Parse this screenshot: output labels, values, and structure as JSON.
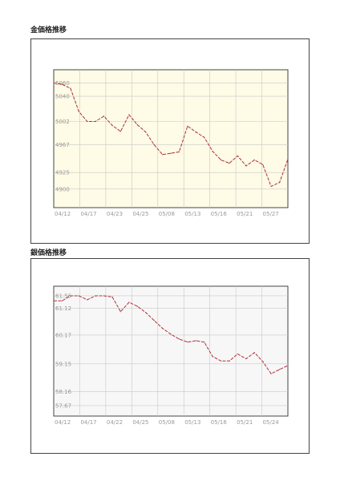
{
  "chart_data": [
    {
      "type": "line",
      "title": "金価格推移",
      "xlabel": "",
      "ylabel": "",
      "x_ticks": [
        "04/12",
        "04/17",
        "04/23",
        "04/25",
        "05/08",
        "05/13",
        "05/16",
        "05/21",
        "05/27"
      ],
      "y_ticks": [
        "5060",
        "5040",
        "5002",
        "4967",
        "4925",
        "4900"
      ],
      "y_tick_values": [
        5060,
        5040,
        5002,
        4967,
        4925,
        4900
      ],
      "ylim": [
        4872,
        5080
      ],
      "x_range": [
        0,
        28
      ],
      "grid": true,
      "background": "#fefbe6",
      "line_color": "#b0303a",
      "series": [
        {
          "x": [
            0,
            1,
            2,
            3,
            4,
            5,
            6,
            7,
            8,
            9,
            10,
            11,
            12,
            13,
            14,
            15,
            16,
            17,
            18,
            19,
            20,
            21,
            22,
            23,
            24,
            25,
            26,
            27,
            28
          ],
          "values": [
            5060,
            5058,
            5052,
            5017,
            5002,
            5002,
            5010,
            4996,
            4987,
            5012,
            4997,
            4986,
            4967,
            4952,
            4954,
            4956,
            4995,
            4986,
            4978,
            4957,
            4944,
            4939,
            4950,
            4935,
            4944,
            4937,
            4904,
            4910,
            4945
          ]
        }
      ]
    },
    {
      "type": "line",
      "title": "銀価格推移",
      "xlabel": "",
      "ylabel": "",
      "x_ticks": [
        "04/12",
        "04/17",
        "04/22",
        "04/25",
        "05/08",
        "05/13",
        "05/16",
        "05/21",
        "05/24"
      ],
      "y_ticks": [
        "61.56",
        "61.12",
        "60.17",
        "59.15",
        "58.16",
        "57.67"
      ],
      "y_tick_values": [
        61.56,
        61.12,
        60.17,
        59.15,
        58.16,
        57.67
      ],
      "ylim": [
        57.3,
        61.9
      ],
      "x_range": [
        0,
        28
      ],
      "grid": true,
      "background": "#f7f7f7",
      "line_color": "#b0303a",
      "series": [
        {
          "x": [
            0,
            1,
            2,
            3,
            4,
            5,
            6,
            7,
            8,
            9,
            10,
            11,
            12,
            13,
            14,
            15,
            16,
            17,
            18,
            19,
            20,
            21,
            22,
            23,
            24,
            25,
            26,
            27,
            28
          ],
          "values": [
            61.38,
            61.38,
            61.56,
            61.56,
            61.42,
            61.56,
            61.56,
            61.52,
            61.0,
            61.33,
            61.19,
            60.97,
            60.69,
            60.41,
            60.2,
            60.03,
            59.92,
            59.97,
            59.92,
            59.41,
            59.25,
            59.25,
            59.5,
            59.33,
            59.55,
            59.23,
            58.8,
            58.95,
            59.09
          ]
        }
      ]
    }
  ]
}
